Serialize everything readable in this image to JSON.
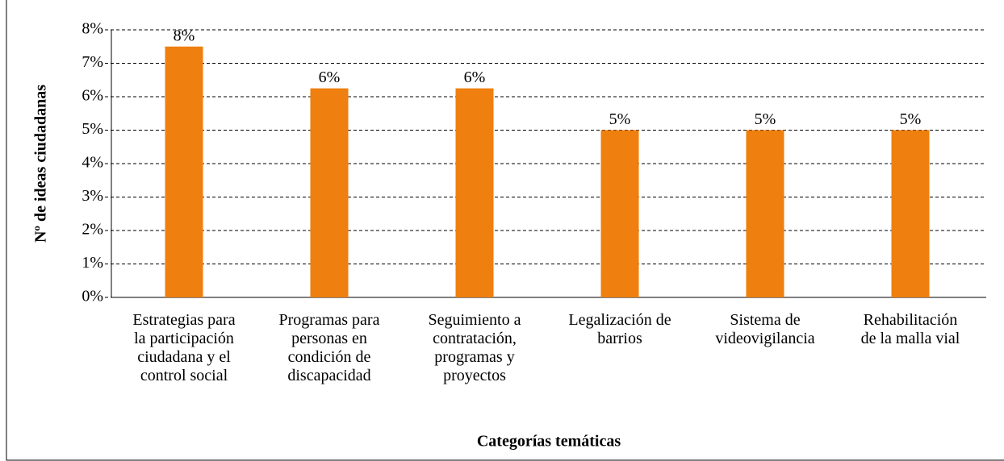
{
  "chart_data": {
    "type": "bar",
    "y_label": "Nº de ideas ciudadanas",
    "x_label": "Categorías temáticas",
    "categories": [
      "Estrategias para\nla participación\nciudadana y el\ncontrol social",
      "Programas para\npersonas en\ncondición de\ndiscapacidad",
      "Seguimiento a\ncontratación,\nprogramas y\nproyectos",
      "Legalización de\nbarrios",
      "Sistema de\nvideovigilancia",
      "Rehabilitación\nde la malla vial"
    ],
    "values": [
      7.5,
      6.25,
      6.25,
      5,
      5,
      5
    ],
    "value_labels": [
      "8%",
      "6%",
      "6%",
      "5%",
      "5%",
      "5%"
    ],
    "color": "#ef7f0e",
    "ylim": [
      0,
      8
    ],
    "yticks": [
      {
        "value": 0,
        "label": "0%"
      },
      {
        "value": 1,
        "label": "1%"
      },
      {
        "value": 2,
        "label": "2%"
      },
      {
        "value": 3,
        "label": "3%"
      },
      {
        "value": 4,
        "label": "4%"
      },
      {
        "value": 5,
        "label": "5%"
      },
      {
        "value": 6,
        "label": "6%"
      },
      {
        "value": 7,
        "label": "7%"
      },
      {
        "value": 8,
        "label": "8%"
      }
    ],
    "grid": true
  }
}
